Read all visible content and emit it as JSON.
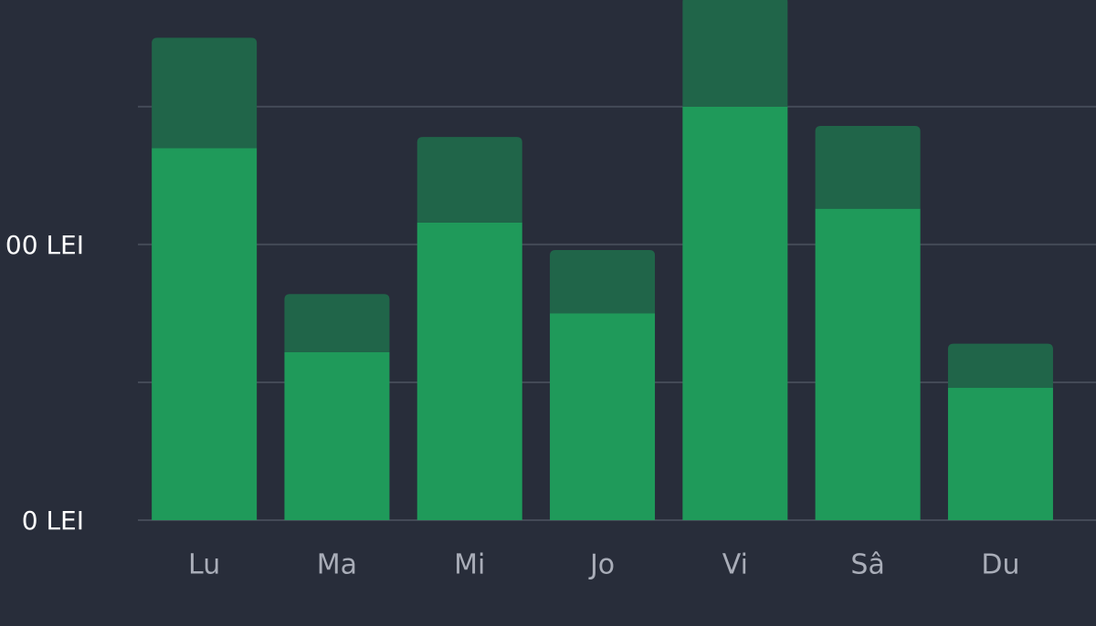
{
  "chart_data": {
    "type": "stacked-bar",
    "categories": [
      "Lu",
      "Ma",
      "Mi",
      "Jo",
      "Vi",
      "Sâ",
      "Du"
    ],
    "series": [
      {
        "color": "#1f9a5a",
        "values": [
          135,
          61,
          108,
          75,
          150,
          113,
          48
        ]
      },
      {
        "color": "#206549",
        "values": [
          40,
          21,
          31,
          23,
          40,
          30,
          16
        ]
      }
    ],
    "ylim": [
      -38.4,
      188.7
    ],
    "yticks": [
      {
        "value": 0,
        "label": "0 LEI"
      },
      {
        "value": 50,
        "label": null
      },
      {
        "value": 100,
        "label": "00 LEI"
      },
      {
        "value": 150,
        "label": null
      }
    ],
    "grid": true
  }
}
